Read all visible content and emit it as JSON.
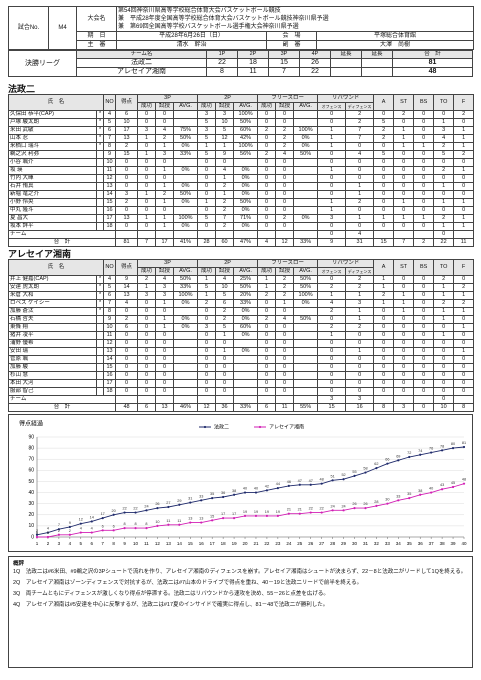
{
  "header": {
    "match_no_label": "試合No.",
    "match_no": "M4",
    "tournament_label": "大会名",
    "tournament": [
      "第54回神奈川県高等学校総合体育大会バスケットボール競技",
      "兼　平成28年度全国高等学校総合体育大会バスケットボール競技神奈川県予選",
      "兼　第69回全国高等学校バスケットボール選手権大会神奈川県予選"
    ],
    "date_label": "期　日",
    "date": "平成28年6月26日（日）",
    "venue_label": "会　場",
    "venue": "平塚総合体育館",
    "referee_label": "主　審",
    "referee": "清水　幹治",
    "umpire_label": "副　審",
    "umpire": "大澤　尚樹",
    "round": "決勝リーグ"
  },
  "score": {
    "headers": [
      "チーム名",
      "1P",
      "2P",
      "3P",
      "4P",
      "延長",
      "延長",
      "合　計"
    ],
    "rows": [
      [
        "法政二",
        "22",
        "18",
        "15",
        "26",
        null,
        null,
        "81"
      ],
      [
        "アレセイア湘南",
        "8",
        "11",
        "7",
        "22",
        null,
        null,
        "48"
      ]
    ]
  },
  "box_header": {
    "name": "氏　名",
    "no": "NO",
    "pts": "得点",
    "groups": [
      "3P",
      "2P",
      "フリースロー"
    ],
    "sub": [
      "成功",
      "試投",
      "AVG."
    ],
    "reb": "リバウンド",
    "reb_sub": [
      "オフェンス",
      "ディフェンス"
    ],
    "others": [
      "A",
      "ST",
      "BS",
      "TO",
      "F"
    ]
  },
  "teams": [
    {
      "name": "法政二",
      "players": [
        [
          "久保田 恭平(CAP)",
          "*",
          "4",
          "6",
          "0",
          "0",
          null,
          "3",
          "3",
          "100%",
          "0",
          "0",
          null,
          "0",
          "2",
          "0",
          "2",
          "0",
          "0",
          "2"
        ],
        [
          "戸塚 駿太朗",
          "*",
          "5",
          "10",
          "0",
          "0",
          null,
          "5",
          "10",
          "50%",
          "0",
          "0",
          null,
          "0",
          "2",
          "5",
          "0",
          "0",
          "1",
          "0"
        ],
        [
          "米田 武敏",
          "*",
          "6",
          "17",
          "3",
          "4",
          "75%",
          "3",
          "5",
          "60%",
          "2",
          "2",
          "100%",
          "1",
          "7",
          "2",
          "1",
          "0",
          "3",
          "1"
        ],
        [
          "山本 忍",
          "*",
          "7",
          "13",
          "1",
          "2",
          "50%",
          "5",
          "12",
          "42%",
          "0",
          "2",
          "0%",
          "1",
          "7",
          "2",
          "1",
          "0",
          "4",
          "1"
        ],
        [
          "来栖口 瑞斗",
          "*",
          "8",
          "2",
          "0",
          "1",
          "0%",
          "1",
          "1",
          "100%",
          "0",
          "2",
          "0%",
          "1",
          "0",
          "0",
          "1",
          "1",
          "2",
          "1"
        ],
        [
          "鵜之沢 利弥",
          null,
          "9",
          "15",
          "1",
          "3",
          "33%",
          "5",
          "9",
          "56%",
          "2",
          "4",
          "50%",
          "0",
          "4",
          "5",
          "0",
          "0",
          "5",
          "2"
        ],
        [
          "小谷 颯介",
          null,
          "10",
          "0",
          "0",
          "0",
          null,
          "0",
          "0",
          null,
          "0",
          "0",
          null,
          "0",
          "0",
          "0",
          "0",
          "0",
          "0",
          "0"
        ],
        [
          "坂 瑛",
          null,
          "11",
          "0",
          "0",
          "1",
          "0%",
          "0",
          "4",
          "0%",
          "0",
          "0",
          null,
          "1",
          "0",
          "0",
          "0",
          "0",
          "2",
          "1"
        ],
        [
          "竹内 大暉",
          null,
          "12",
          "0",
          "0",
          "0",
          null,
          "0",
          "1",
          "0%",
          "0",
          "0",
          null,
          "0",
          "0",
          "0",
          "0",
          "0",
          "0",
          "0"
        ],
        [
          "石井 侑真",
          null,
          "13",
          "0",
          "0",
          "1",
          "0%",
          "0",
          "2",
          "0%",
          "0",
          "0",
          null,
          "0",
          "1",
          "0",
          "0",
          "0",
          "1",
          "0"
        ],
        [
          "新堀 竜之介",
          null,
          "14",
          "3",
          "1",
          "2",
          "50%",
          "0",
          "1",
          "0%",
          "0",
          "0",
          null,
          "0",
          "1",
          "0",
          "0",
          "0",
          "0",
          "0"
        ],
        [
          "小野 怜央",
          null,
          "15",
          "2",
          "0",
          "1",
          "0%",
          "1",
          "2",
          "50%",
          "0",
          "0",
          null,
          "1",
          "2",
          "0",
          "1",
          "0",
          "1",
          "1"
        ],
        [
          "中丸 隆斗",
          null,
          "16",
          "0",
          "0",
          "0",
          null,
          "0",
          "2",
          "0%",
          "0",
          "0",
          null,
          "1",
          "0",
          "0",
          "0",
          "0",
          "0",
          "0"
        ],
        [
          "夏 昌大",
          null,
          "17",
          "13",
          "1",
          "1",
          "100%",
          "5",
          "7",
          "71%",
          "0",
          "2",
          "0%",
          "3",
          "1",
          "1",
          "1",
          "1",
          "2",
          "1"
        ],
        [
          "坂本 詳平",
          null,
          "18",
          "0",
          "0",
          "1",
          "0%",
          "0",
          "2",
          "0%",
          "0",
          "0",
          null,
          "0",
          "0",
          "0",
          "0",
          "0",
          "1",
          "1"
        ]
      ],
      "team_row": [
        "チーム",
        null,
        null,
        null,
        null,
        null,
        null,
        null,
        null,
        null,
        null,
        "0",
        "4",
        null,
        null,
        null,
        "0",
        null
      ],
      "total_label": "合　計",
      "total": [
        "81",
        "7",
        "17",
        "41%",
        "28",
        "60",
        "47%",
        "4",
        "12",
        "33%",
        "9",
        "31",
        "15",
        "7",
        "2",
        "22",
        "11"
      ]
    },
    {
      "name": "アレセイア湘南",
      "players": [
        [
          "井上 健嘉(CAP)",
          "*",
          "4",
          "9",
          "2",
          "4",
          "50%",
          "1",
          "4",
          "25%",
          "1",
          "2",
          "50%",
          "0",
          "2",
          "1",
          "0",
          "0",
          "2",
          "0"
        ],
        [
          "安達 虎太朗",
          "*",
          "5",
          "14",
          "1",
          "3",
          "33%",
          "5",
          "10",
          "50%",
          "1",
          "2",
          "50%",
          "2",
          "2",
          "1",
          "0",
          "0",
          "1",
          "2"
        ],
        [
          "米倉 大和",
          "*",
          "6",
          "13",
          "3",
          "3",
          "100%",
          "1",
          "5",
          "20%",
          "2",
          "2",
          "100%",
          "1",
          "1",
          "2",
          "1",
          "0",
          "1",
          "1"
        ],
        [
          "ロペス ケイシー",
          "*",
          "7",
          "4",
          "0",
          "1",
          "0%",
          "2",
          "6",
          "33%",
          "0",
          "1",
          "0%",
          "4",
          "3",
          "1",
          "1",
          "0",
          "2",
          "2"
        ],
        [
          "加藤 蒼汰",
          "*",
          "8",
          "0",
          "0",
          "0",
          null,
          "0",
          "2",
          "0%",
          "0",
          "0",
          null,
          "2",
          "1",
          "0",
          "1",
          "0",
          "1",
          "1"
        ],
        [
          "石橋 哲夫",
          null,
          "9",
          "2",
          "0",
          "1",
          "0%",
          "0",
          "2",
          "0%",
          "2",
          "4",
          "50%",
          "0",
          "1",
          "0",
          "0",
          "0",
          "1",
          "0"
        ],
        [
          "東條 翔",
          null,
          "10",
          "6",
          "0",
          "1",
          "0%",
          "3",
          "5",
          "60%",
          "0",
          "0",
          null,
          "2",
          "2",
          "0",
          "0",
          "0",
          "0",
          "1"
        ],
        [
          "猪井 凌平",
          null,
          "11",
          "0",
          "0",
          "0",
          null,
          "0",
          "1",
          "0%",
          "0",
          "0",
          null,
          "1",
          "0",
          "0",
          "0",
          "0",
          "1",
          "0"
        ],
        [
          "浦野 優希",
          null,
          "12",
          "0",
          "0",
          "0",
          null,
          "0",
          "0",
          null,
          "0",
          "0",
          null,
          "0",
          "0",
          "0",
          "0",
          "0",
          "0",
          "0"
        ],
        [
          "安田 瑞",
          null,
          "13",
          "0",
          "0",
          "0",
          null,
          "0",
          "1",
          "0%",
          "0",
          "0",
          null,
          "0",
          "1",
          "0",
          "0",
          "0",
          "0",
          "1"
        ],
        [
          "菅原 颯",
          null,
          "14",
          "0",
          "0",
          "0",
          null,
          "0",
          "0",
          null,
          "0",
          "0",
          null,
          "0",
          "0",
          "0",
          "0",
          "0",
          "0",
          "0"
        ],
        [
          "加藤 駿",
          null,
          "15",
          "0",
          "0",
          "0",
          null,
          "0",
          "0",
          null,
          "0",
          "0",
          null,
          "0",
          "0",
          "0",
          "0",
          "0",
          "0",
          "0"
        ],
        [
          "杉山 慧",
          null,
          "16",
          "0",
          "0",
          "0",
          null,
          "0",
          "0",
          null,
          "0",
          "0",
          null,
          "0",
          "0",
          "0",
          "0",
          "0",
          "0",
          "0"
        ],
        [
          "本田 大河",
          null,
          "17",
          "0",
          "0",
          "0",
          null,
          "0",
          "0",
          null,
          "0",
          "0",
          null,
          "0",
          "0",
          "0",
          "0",
          "0",
          "0",
          "0"
        ],
        [
          "服部 智己",
          null,
          "18",
          "0",
          "0",
          "0",
          null,
          "0",
          "0",
          null,
          "0",
          "0",
          null,
          "0",
          "0",
          "0",
          "0",
          "0",
          "0",
          "0"
        ]
      ],
      "team_row": [
        "チーム",
        null,
        null,
        null,
        null,
        null,
        null,
        null,
        null,
        null,
        null,
        "3",
        "3",
        null,
        null,
        null,
        "0",
        null
      ],
      "total_label": "合　計",
      "total": [
        "48",
        "6",
        "13",
        "46%",
        "12",
        "36",
        "33%",
        "6",
        "11",
        "55%",
        "15",
        "16",
        "8",
        "3",
        "0",
        "10",
        "8"
      ]
    }
  ],
  "chart_data": {
    "type": "line",
    "title": "得点経過",
    "x": [
      1,
      2,
      3,
      4,
      5,
      6,
      7,
      8,
      9,
      10,
      11,
      12,
      13,
      14,
      15,
      16,
      17,
      18,
      19,
      20,
      21,
      22,
      23,
      24,
      25,
      26,
      27,
      28,
      29,
      30,
      31,
      32,
      33,
      34,
      35,
      36,
      37,
      38,
      39,
      40
    ],
    "xlim": [
      1,
      40
    ],
    "xticks": [
      1,
      2,
      3,
      4,
      5,
      6,
      7,
      8,
      9,
      10,
      11,
      12,
      13,
      14,
      15,
      16,
      17,
      18,
      19,
      20,
      21,
      22,
      23,
      24,
      25,
      26,
      27,
      28,
      29,
      30,
      31,
      32,
      33,
      34,
      35,
      36,
      37,
      38,
      39,
      40
    ],
    "ylim": [
      0,
      90
    ],
    "yticks": [
      0,
      10,
      20,
      30,
      40,
      50,
      60,
      70,
      80,
      90
    ],
    "grid": true,
    "series": [
      {
        "name": "法政二",
        "color": "#1f2a6b",
        "values": [
          2,
          4,
          7,
          9,
          12,
          14,
          17,
          20,
          22,
          22,
          24,
          26,
          27,
          29,
          31,
          33,
          35,
          36,
          38,
          40,
          40,
          42,
          44,
          46,
          47,
          47,
          48,
          51,
          52,
          55,
          58,
          62,
          66,
          69,
          72,
          74,
          76,
          78,
          80,
          81
        ]
      },
      {
        "name": "アレセイア湘南",
        "color": "#d21fb4",
        "values": [
          0,
          0,
          2,
          2,
          4,
          4,
          6,
          6,
          8,
          8,
          8,
          10,
          11,
          11,
          13,
          13,
          15,
          17,
          17,
          19,
          19,
          19,
          19,
          21,
          21,
          22,
          22,
          24,
          24,
          26,
          26,
          28,
          30,
          33,
          35,
          38,
          40,
          43,
          45,
          48
        ]
      }
    ]
  },
  "comments": {
    "title": "概評",
    "paragraphs": [
      "1Q　法政二は#6米田、#9鵜之沢の3Pシュートで流れを作り、アレセイア湘南のディフェンスを崩す。アレセイア湘南はシュートが決まらず、22－8と法政二がリードして1Qを終える。",
      "2Q　アレセイア湘南はゾーンディフェンスで対抗するが、法政二は#7山本のドライブで得点を重ね、40－19と法政二リードで前半を終える。",
      "3Q　両チームともにディフェンスが激しくなり得点が停滞する。法政二はリバウンドから速攻を決め、55－26と点差を広げる。",
      "4Q　アレセイア湘南は#5安達を中心に反撃するが、法政二は#17夏のインサイドで確実に得点し、81－48で法政二が勝利した。"
    ]
  }
}
